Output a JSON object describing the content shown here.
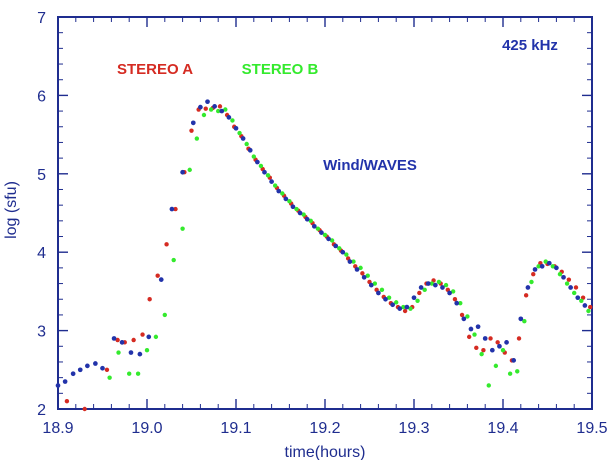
{
  "chart_data": {
    "type": "scatter",
    "xlabel": "time(hours)",
    "ylabel": "log (sfu)",
    "xlim": [
      18.9,
      19.5
    ],
    "ylim": [
      2,
      7
    ],
    "x_ticks": [
      "18.9",
      "19.0",
      "19.1",
      "19.2",
      "19.3",
      "19.4",
      "19.5"
    ],
    "y_ticks": [
      "2",
      "3",
      "4",
      "5",
      "6",
      "7"
    ],
    "annotations": {
      "frequency": "425 kHz",
      "stereo_a": "STEREO A",
      "stereo_b": "STEREO B",
      "wind_waves": "Wind/WAVES"
    },
    "colors": {
      "axis": "#1f2d8f",
      "stereo_a": "#d52b22",
      "stereo_b": "#34ea2d",
      "wind_waves": "#2233aa"
    },
    "series": [
      {
        "name": "STEREO A",
        "color": "#d52b22",
        "x": [
          18.91,
          18.93,
          18.955,
          18.967,
          18.975,
          18.985,
          18.995,
          19.003,
          19.012,
          19.022,
          19.032,
          19.042,
          19.05,
          19.058,
          19.066,
          19.074,
          19.082,
          19.09,
          19.098,
          19.106,
          19.114,
          19.122,
          19.13,
          19.138,
          19.146,
          19.154,
          19.162,
          19.17,
          19.178,
          19.186,
          19.194,
          19.202,
          19.21,
          19.218,
          19.226,
          19.234,
          19.242,
          19.25,
          19.258,
          19.266,
          19.274,
          19.282,
          19.29,
          19.298,
          19.306,
          19.314,
          19.322,
          19.33,
          19.338,
          19.346,
          19.354,
          19.362,
          19.37,
          19.378,
          19.386,
          19.394,
          19.402,
          19.41,
          19.418,
          19.426,
          19.434,
          19.442,
          19.45,
          19.458,
          19.466,
          19.474,
          19.482,
          19.49,
          19.498
        ],
        "y": [
          2.1,
          2.0,
          2.5,
          2.88,
          2.85,
          2.88,
          2.95,
          3.4,
          3.7,
          4.1,
          4.55,
          5.02,
          5.55,
          5.82,
          5.83,
          5.84,
          5.86,
          5.75,
          5.6,
          5.48,
          5.32,
          5.18,
          5.06,
          4.95,
          4.82,
          4.72,
          4.62,
          4.53,
          4.45,
          4.37,
          4.28,
          4.2,
          4.1,
          4.02,
          3.92,
          3.82,
          3.73,
          3.62,
          3.52,
          3.43,
          3.35,
          3.3,
          3.25,
          3.3,
          3.48,
          3.6,
          3.64,
          3.6,
          3.52,
          3.4,
          3.2,
          2.92,
          2.78,
          2.75,
          2.9,
          2.85,
          2.72,
          2.62,
          2.9,
          3.45,
          3.72,
          3.86,
          3.85,
          3.82,
          3.75,
          3.65,
          3.55,
          3.42,
          3.3
        ]
      },
      {
        "name": "STEREO B",
        "color": "#34ea2d",
        "x": [
          18.958,
          18.968,
          18.98,
          18.99,
          19.0,
          19.01,
          19.02,
          19.03,
          19.04,
          19.048,
          19.056,
          19.064,
          19.072,
          19.08,
          19.088,
          19.096,
          19.104,
          19.112,
          19.12,
          19.128,
          19.136,
          19.144,
          19.152,
          19.16,
          19.168,
          19.176,
          19.184,
          19.192,
          19.2,
          19.208,
          19.216,
          19.224,
          19.232,
          19.24,
          19.248,
          19.256,
          19.264,
          19.272,
          19.28,
          19.288,
          19.296,
          19.304,
          19.312,
          19.32,
          19.328,
          19.336,
          19.344,
          19.352,
          19.36,
          19.368,
          19.376,
          19.384,
          19.392,
          19.4,
          19.408,
          19.416,
          19.424,
          19.432,
          19.44,
          19.448,
          19.456,
          19.464,
          19.472,
          19.48,
          19.488,
          19.496
        ],
        "y": [
          2.4,
          2.72,
          2.45,
          2.45,
          2.75,
          2.92,
          3.2,
          3.9,
          4.3,
          5.05,
          5.45,
          5.75,
          5.82,
          5.8,
          5.82,
          5.68,
          5.52,
          5.38,
          5.22,
          5.1,
          4.98,
          4.85,
          4.75,
          4.65,
          4.55,
          4.48,
          4.4,
          4.3,
          4.22,
          4.15,
          4.05,
          3.97,
          3.88,
          3.8,
          3.7,
          3.6,
          3.52,
          3.42,
          3.36,
          3.3,
          3.28,
          3.38,
          3.52,
          3.6,
          3.62,
          3.58,
          3.5,
          3.35,
          3.18,
          2.95,
          2.7,
          2.3,
          2.55,
          2.75,
          2.45,
          2.48,
          3.12,
          3.62,
          3.82,
          3.88,
          3.82,
          3.72,
          3.6,
          3.48,
          3.38,
          3.25
        ]
      },
      {
        "name": "Wind/WAVES",
        "color": "#2233aa",
        "x": [
          18.9,
          18.908,
          18.917,
          18.925,
          18.933,
          18.942,
          18.95,
          18.963,
          18.972,
          18.982,
          18.992,
          19.002,
          19.016,
          19.028,
          19.04,
          19.052,
          19.06,
          19.068,
          19.076,
          19.084,
          19.092,
          19.1,
          19.108,
          19.116,
          19.124,
          19.132,
          19.14,
          19.148,
          19.156,
          19.164,
          19.172,
          19.18,
          19.188,
          19.196,
          19.204,
          19.212,
          19.22,
          19.228,
          19.236,
          19.244,
          19.252,
          19.26,
          19.268,
          19.276,
          19.284,
          19.292,
          19.3,
          19.308,
          19.316,
          19.324,
          19.332,
          19.34,
          19.348,
          19.356,
          19.364,
          19.372,
          19.38,
          19.388,
          19.396,
          19.404,
          19.412,
          19.42,
          19.428,
          19.436,
          19.444,
          19.452,
          19.46,
          19.468,
          19.476,
          19.484,
          19.492
        ],
        "y": [
          2.3,
          2.35,
          2.45,
          2.5,
          2.55,
          2.58,
          2.52,
          2.9,
          2.85,
          2.72,
          2.7,
          2.92,
          3.65,
          4.55,
          5.02,
          5.65,
          5.85,
          5.92,
          5.86,
          5.8,
          5.72,
          5.58,
          5.45,
          5.3,
          5.15,
          5.02,
          4.9,
          4.78,
          4.68,
          4.58,
          4.5,
          4.42,
          4.33,
          4.25,
          4.17,
          4.08,
          4.0,
          3.88,
          3.78,
          3.68,
          3.58,
          3.48,
          3.4,
          3.33,
          3.28,
          3.3,
          3.42,
          3.55,
          3.6,
          3.58,
          3.55,
          3.48,
          3.35,
          3.15,
          3.02,
          3.05,
          2.9,
          2.75,
          2.8,
          2.85,
          2.62,
          3.15,
          3.55,
          3.78,
          3.82,
          3.86,
          3.8,
          3.68,
          3.55,
          3.42,
          3.32
        ]
      }
    ]
  }
}
